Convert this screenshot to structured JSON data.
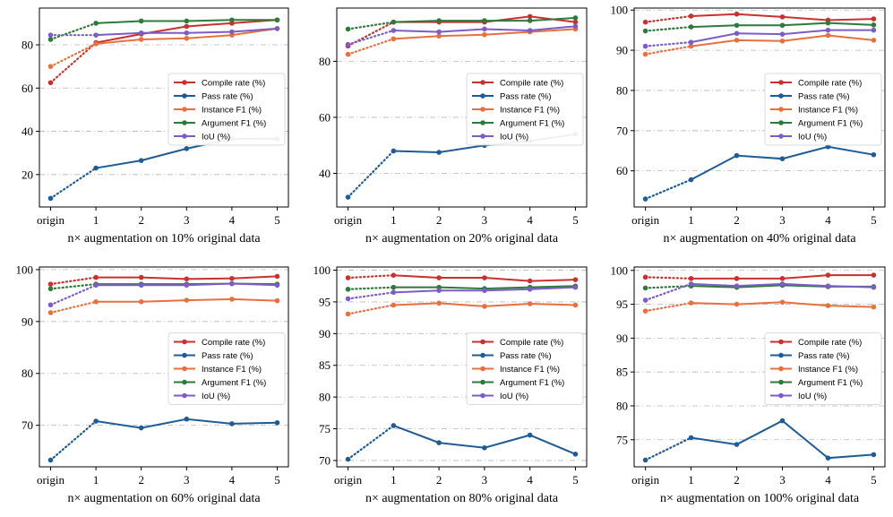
{
  "series_colors": {
    "Compile rate (%)": "#c8312e",
    "Pass rate (%)": "#1f5b95",
    "Instance F1 (%)": "#e8703f",
    "Argument F1 (%)": "#2e7a3a",
    "IoU (%)": "#7c5cc7"
  },
  "chart_data": [
    {
      "type": "line",
      "categories": [
        "origin",
        "1",
        "2",
        "3",
        "4",
        "5"
      ],
      "xlabel": "n× augmentation on 10% original data",
      "ylim": [
        5,
        97
      ],
      "yticks": [
        20,
        40,
        60,
        80
      ],
      "legend": "center-right",
      "series": [
        {
          "name": "Compile rate (%)",
          "values": [
            62.5,
            81,
            85,
            88.5,
            90,
            91.5
          ]
        },
        {
          "name": "Pass rate (%)",
          "values": [
            9,
            23,
            26.5,
            32,
            36.5,
            36.5
          ]
        },
        {
          "name": "Instance F1 (%)",
          "values": [
            70,
            80.5,
            82.5,
            83,
            84.5,
            87.5
          ]
        },
        {
          "name": "Argument F1 (%)",
          "values": [
            82.5,
            90,
            91,
            91,
            91.5,
            91.5
          ]
        },
        {
          "name": "IoU (%)",
          "values": [
            84.5,
            84.5,
            85.5,
            85.5,
            86,
            87.5
          ]
        }
      ]
    },
    {
      "type": "line",
      "categories": [
        "origin",
        "1",
        "2",
        "3",
        "4",
        "5"
      ],
      "xlabel": "n× augmentation on 20% original data",
      "ylim": [
        28,
        99
      ],
      "yticks": [
        40,
        60,
        80
      ],
      "legend": "center-right",
      "series": [
        {
          "name": "Compile rate (%)",
          "values": [
            85.5,
            94,
            94,
            94,
            96,
            94
          ]
        },
        {
          "name": "Pass rate (%)",
          "values": [
            31.5,
            48,
            47.5,
            50,
            51.5,
            54
          ]
        },
        {
          "name": "Instance F1 (%)",
          "values": [
            82.5,
            88,
            89,
            89.5,
            90.5,
            91.5
          ]
        },
        {
          "name": "Argument F1 (%)",
          "values": [
            91.5,
            94,
            94.5,
            94.5,
            94.5,
            95.5
          ]
        },
        {
          "name": "IoU (%)",
          "values": [
            86,
            91,
            90.5,
            91.5,
            91,
            92.5
          ]
        }
      ]
    },
    {
      "type": "line",
      "categories": [
        "origin",
        "1",
        "2",
        "3",
        "4",
        "5"
      ],
      "xlabel": "n× augmentation on 40% original data",
      "ylim": [
        51,
        100.5
      ],
      "yticks": [
        60,
        70,
        80,
        90,
        100
      ],
      "legend": "center-right",
      "series": [
        {
          "name": "Compile rate (%)",
          "values": [
            97,
            98.5,
            99,
            98.3,
            97.5,
            97.8
          ]
        },
        {
          "name": "Pass rate (%)",
          "values": [
            53,
            57.8,
            63.8,
            63,
            66,
            64
          ]
        },
        {
          "name": "Instance F1 (%)",
          "values": [
            89,
            91,
            92.5,
            92.3,
            93.7,
            92.5
          ]
        },
        {
          "name": "Argument F1 (%)",
          "values": [
            94.8,
            95.8,
            96.2,
            96.2,
            96.8,
            96.3
          ]
        },
        {
          "name": "IoU (%)",
          "values": [
            91,
            92,
            94.2,
            94,
            95,
            95
          ]
        }
      ]
    },
    {
      "type": "line",
      "categories": [
        "origin",
        "1",
        "2",
        "3",
        "4",
        "5"
      ],
      "xlabel": "n× augmentation on 60% original data",
      "ylim": [
        62,
        100.5
      ],
      "yticks": [
        70,
        80,
        90,
        100
      ],
      "legend": "center-right",
      "series": [
        {
          "name": "Compile rate (%)",
          "values": [
            97.2,
            98.5,
            98.5,
            98.2,
            98.3,
            98.7
          ]
        },
        {
          "name": "Pass rate (%)",
          "values": [
            63.3,
            70.8,
            69.5,
            71.2,
            70.3,
            70.5
          ]
        },
        {
          "name": "Instance F1 (%)",
          "values": [
            91.7,
            93.8,
            93.8,
            94.1,
            94.3,
            94
          ]
        },
        {
          "name": "Argument F1 (%)",
          "values": [
            96.3,
            97.2,
            97.2,
            97.2,
            97.3,
            97.2
          ]
        },
        {
          "name": "IoU (%)",
          "values": [
            93.2,
            97,
            97,
            97,
            97.3,
            97
          ]
        }
      ]
    },
    {
      "type": "line",
      "categories": [
        "origin",
        "1",
        "2",
        "3",
        "4",
        "5"
      ],
      "xlabel": "n× augmentation on 80% original data",
      "ylim": [
        69,
        100.5
      ],
      "yticks": [
        70,
        75,
        80,
        85,
        90,
        95,
        100
      ],
      "legend": "center-right",
      "series": [
        {
          "name": "Compile rate (%)",
          "values": [
            98.8,
            99.2,
            98.8,
            98.8,
            98.3,
            98.5
          ]
        },
        {
          "name": "Pass rate (%)",
          "values": [
            70.2,
            75.5,
            72.8,
            72,
            74,
            71
          ]
        },
        {
          "name": "Instance F1 (%)",
          "values": [
            93.1,
            94.5,
            94.8,
            94.3,
            94.7,
            94.5
          ]
        },
        {
          "name": "Argument F1 (%)",
          "values": [
            97,
            97.3,
            97.3,
            97.1,
            97.3,
            97.5
          ]
        },
        {
          "name": "IoU (%)",
          "values": [
            95.5,
            96.5,
            96.8,
            96.8,
            97,
            97.3
          ]
        }
      ]
    },
    {
      "type": "line",
      "categories": [
        "origin",
        "1",
        "2",
        "3",
        "4",
        "5"
      ],
      "xlabel": "n× augmentation on 100% original data",
      "ylim": [
        71,
        100.5
      ],
      "yticks": [
        75,
        80,
        85,
        90,
        95,
        100
      ],
      "legend": "center-right",
      "series": [
        {
          "name": "Compile rate (%)",
          "values": [
            99,
            98.8,
            98.8,
            98.8,
            99.3,
            99.3
          ]
        },
        {
          "name": "Pass rate (%)",
          "values": [
            72,
            75.3,
            74.3,
            77.8,
            72.3,
            72.8
          ]
        },
        {
          "name": "Instance F1 (%)",
          "values": [
            94,
            95.2,
            95,
            95.3,
            94.8,
            94.6
          ]
        },
        {
          "name": "Argument F1 (%)",
          "values": [
            97.4,
            97.7,
            97.5,
            97.8,
            97.6,
            97.6
          ]
        },
        {
          "name": "IoU (%)",
          "values": [
            95.6,
            98,
            97.7,
            98,
            97.7,
            97.5
          ]
        }
      ]
    }
  ]
}
